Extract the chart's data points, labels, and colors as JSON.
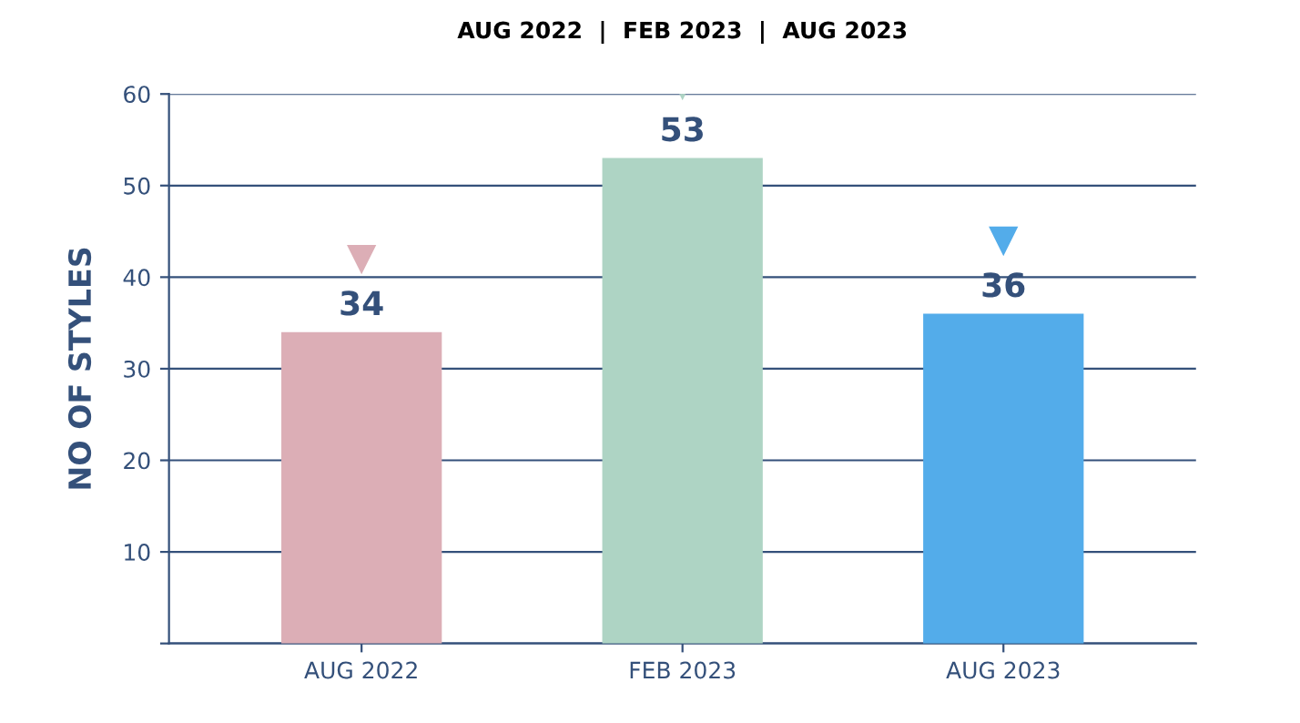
{
  "chart_data": {
    "type": "bar",
    "title": "AUG 2022  |  FEB 2023  |  AUG 2023",
    "ylabel": "NO OF STYLES",
    "categories": [
      "AUG 2022",
      "FEB 2023",
      "AUG 2023"
    ],
    "values": [
      34,
      53,
      36
    ],
    "colors": [
      "#dcaeb6",
      "#aed4c4",
      "#53acea"
    ],
    "ylim": [
      0,
      60
    ],
    "yticks": [
      {
        "value": 0,
        "label": null
      },
      10,
      20,
      30,
      40,
      50,
      60
    ],
    "grid": "y",
    "data_labels": true
  }
}
